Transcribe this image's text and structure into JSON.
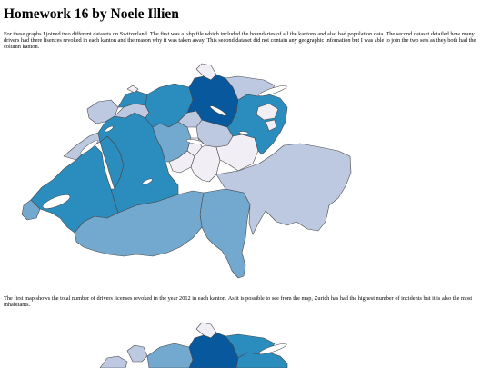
{
  "page": {
    "title": "Homework 16 by Noele Illien",
    "intro": "For these graphs I joined two different datasets on Switzerland. The first was a .shp file which included the boundaries of all the kantons and also had population data. The second dataset detailed how many drivers had there lisences revoked in each kanton and the reason why it was taken away. This second dataset did not contain any geographic infomation but I was able to join the two sets as they both had the column kanton.",
    "caption": "The first map shows the total number of drivers licenses revoked in the year 2012 in each kanton. As it is possible to see from the map, Zurich has had the highest number of incidents but it is also the most inhabitants."
  },
  "colors": {
    "darkest": "#08589e",
    "dark": "#2b8cbe",
    "mid": "#74a9cf",
    "light": "#bdc9e1",
    "lightest": "#f1eef6",
    "border": "#4a4a4a"
  }
}
